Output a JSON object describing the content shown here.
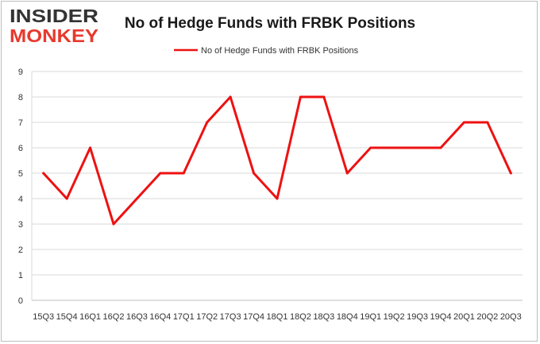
{
  "logo": {
    "line1": "INSIDER",
    "line2": "MONKEY",
    "line1_color": "#333333",
    "line2_color": "#e8392d"
  },
  "chart_data": {
    "type": "line",
    "title": "No of Hedge Funds with FRBK Positions",
    "xlabel": "",
    "ylabel": "",
    "categories": [
      "15Q3",
      "15Q4",
      "16Q1",
      "16Q2",
      "16Q3",
      "16Q4",
      "17Q1",
      "17Q2",
      "17Q3",
      "17Q4",
      "18Q1",
      "18Q2",
      "18Q3",
      "18Q4",
      "19Q1",
      "19Q2",
      "19Q3",
      "19Q4",
      "20Q1",
      "20Q2",
      "20Q3"
    ],
    "series": [
      {
        "name": "No of Hedge Funds with FRBK Positions",
        "values": [
          5,
          4,
          6,
          3,
          4,
          5,
          5,
          7,
          8,
          5,
          4,
          8,
          8,
          5,
          6,
          6,
          6,
          6,
          7,
          7,
          5
        ],
        "color": "#ee1111"
      }
    ],
    "ylim": [
      0,
      9
    ],
    "yticks": [
      0,
      1,
      2,
      3,
      4,
      5,
      6,
      7,
      8,
      9
    ],
    "grid": true,
    "legend_position": "top-center"
  }
}
